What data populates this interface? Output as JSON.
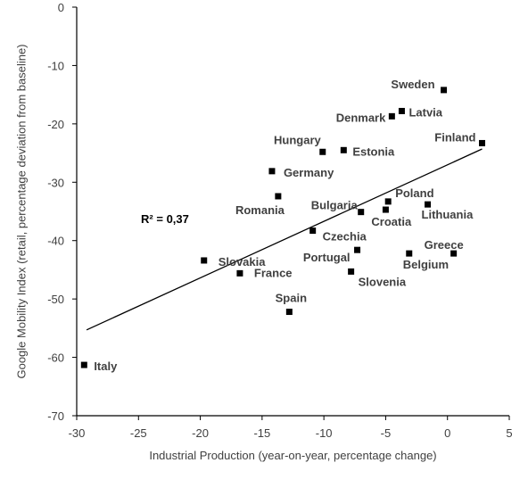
{
  "chart_data": {
    "type": "scatter",
    "xlabel": "Industrial Production (year-on-year, percentage change)",
    "ylabel": "Google Mobility Index (retail, percentage deviation from baseline)",
    "xlim": [
      -30,
      5
    ],
    "ylim": [
      -70,
      0
    ],
    "x_ticks": [
      -30,
      -25,
      -20,
      -15,
      -10,
      -5,
      0,
      5
    ],
    "y_ticks": [
      0,
      -10,
      -20,
      -30,
      -40,
      -50,
      -60,
      -70
    ],
    "grid": false,
    "legend": "none",
    "marker_color": "#000000",
    "points": [
      {
        "label": "Sweden",
        "x": -0.3,
        "y": -14.2
      },
      {
        "label": "Latvia",
        "x": -3.7,
        "y": -17.8
      },
      {
        "label": "Denmark",
        "x": -4.5,
        "y": -18.7
      },
      {
        "label": "Finland",
        "x": 2.8,
        "y": -23.3
      },
      {
        "label": "Hungary",
        "x": -10.1,
        "y": -24.8
      },
      {
        "label": "Estonia",
        "x": -8.4,
        "y": -24.5
      },
      {
        "label": "Germany",
        "x": -14.2,
        "y": -28.1
      },
      {
        "label": "Romania",
        "x": -13.7,
        "y": -32.4
      },
      {
        "label": "Poland",
        "x": -4.8,
        "y": -33.3
      },
      {
        "label": "Bulgaria",
        "x": -7.0,
        "y": -35.1
      },
      {
        "label": "Croatia",
        "x": -5.0,
        "y": -34.7
      },
      {
        "label": "Lithuania",
        "x": -1.6,
        "y": -33.8
      },
      {
        "label": "Czechia",
        "x": -10.9,
        "y": -38.3
      },
      {
        "label": "Portugal",
        "x": -7.3,
        "y": -41.6
      },
      {
        "label": "Greece",
        "x": 0.5,
        "y": -42.2
      },
      {
        "label": "Belgium",
        "x": -3.1,
        "y": -42.2
      },
      {
        "label": "Slovakia",
        "x": -19.7,
        "y": -43.4
      },
      {
        "label": "France",
        "x": -16.8,
        "y": -45.6
      },
      {
        "label": "Slovenia",
        "x": -7.8,
        "y": -45.3
      },
      {
        "label": "Spain",
        "x": -12.8,
        "y": -52.2
      },
      {
        "label": "Italy",
        "x": -29.4,
        "y": -61.3
      }
    ],
    "trendline": {
      "x": [
        -29.2,
        2.8
      ],
      "y": [
        -55.3,
        -24.3
      ]
    },
    "annotation": {
      "text": "R² = 0,37",
      "x": -24.8,
      "y": -36.2
    }
  }
}
